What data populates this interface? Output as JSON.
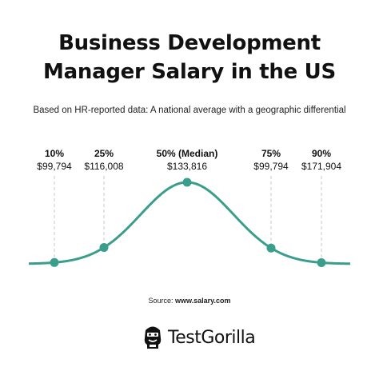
{
  "title_line1": "Business Development",
  "title_line2": "Manager Salary in the US",
  "subtitle": "Based on HR-reported data: A national average with a geographic differential",
  "source_prefix": "Source: ",
  "source_site": "www.salary.com",
  "brand": {
    "name": "TestGorilla",
    "logo": "gorilla-icon"
  },
  "colors": {
    "curve": "#3a9e8c",
    "guide": "#c8c8c8",
    "text": "#111111"
  },
  "chart_data": {
    "type": "line",
    "title": "Business Development Manager Salary in the US",
    "points": [
      {
        "percentile": "10%",
        "salary": "$99,794"
      },
      {
        "percentile": "25%",
        "salary": "$116,008"
      },
      {
        "percentile": "50% (Median)",
        "salary": "$133,816"
      },
      {
        "percentile": "75%",
        "salary": "$99,794"
      },
      {
        "percentile": "90%",
        "salary": "$171,904"
      }
    ],
    "curve": "bell",
    "grid": false,
    "legend": "none"
  }
}
